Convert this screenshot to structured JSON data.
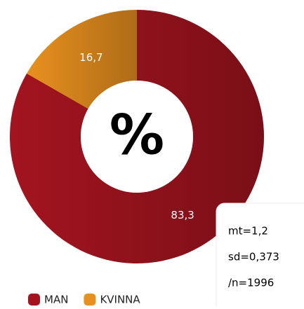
{
  "chart_data": {
    "type": "donut",
    "categories": [
      "MAN",
      "KVINNA"
    ],
    "values": [
      83.3,
      16.7
    ],
    "value_labels": [
      "83,3",
      "16,7"
    ],
    "colors": [
      "#a3141f",
      "#e8901f"
    ],
    "center_label": "%",
    "annotations": [
      "mt=1,2",
      "sd=0,373",
      "/n=1996"
    ],
    "legend": "bottom-left"
  }
}
